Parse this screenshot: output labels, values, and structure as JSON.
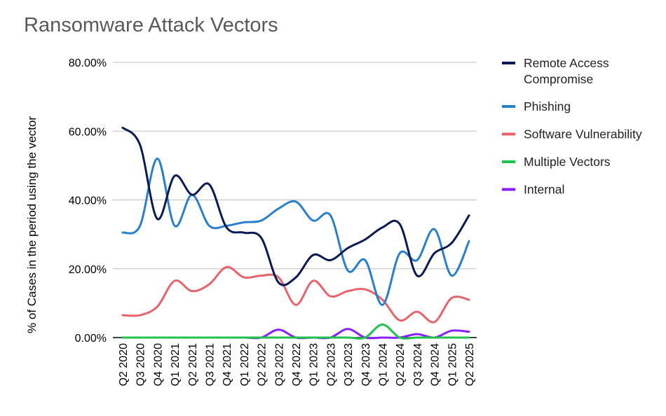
{
  "chart_data": {
    "type": "line",
    "title": "Ransomware Attack Vectors",
    "xlabel": "",
    "ylabel": "% of Cases in the period using the vector",
    "ylim": [
      0,
      80
    ],
    "yticks": [
      "0.00%",
      "20.00%",
      "40.00%",
      "60.00%",
      "80.00%"
    ],
    "grid": true,
    "legend_position": "right",
    "smooth": true,
    "categories": [
      "Q2 2020",
      "Q3 2020",
      "Q4 2020",
      "Q1 2021",
      "Q2 2021",
      "Q3 2021",
      "Q4 2021",
      "Q1 2022",
      "Q2 2022",
      "Q3 2022",
      "Q4 2022",
      "Q1 2023",
      "Q2 2023",
      "Q3 2023",
      "Q4 2023",
      "Q1 2024",
      "Q2 2024",
      "Q3 2024",
      "Q4 2024",
      "Q1 2025",
      "Q2 2025"
    ],
    "series": [
      {
        "name": "Remote Access Compromise",
        "legend_lines": [
          "Remote Access",
          "Compromise"
        ],
        "color": "#0b1a55",
        "values": [
          61,
          56,
          34.5,
          47,
          41.5,
          44.5,
          32,
          30.5,
          29,
          16,
          17.5,
          24,
          22.5,
          26,
          28.5,
          32,
          33,
          18,
          24.5,
          27.5,
          35.5
        ]
      },
      {
        "name": "Phishing",
        "legend_lines": [
          "Phishing"
        ],
        "color": "#2a7fcc",
        "values": [
          30.5,
          32.5,
          52,
          32.5,
          41.5,
          32.5,
          32.5,
          33.5,
          34,
          37.5,
          39.5,
          34,
          35.5,
          19.5,
          22.5,
          9.5,
          24.5,
          22.5,
          31.5,
          18,
          28
        ]
      },
      {
        "name": "Software Vulnerability",
        "legend_lines": [
          "Software Vulnerability"
        ],
        "color": "#e8636c",
        "values": [
          6.5,
          6.5,
          9,
          16.5,
          13.5,
          15.5,
          20.5,
          17.5,
          18,
          17.5,
          9.5,
          16.5,
          12,
          13.5,
          14,
          11,
          5,
          7.5,
          4.5,
          11.5,
          11
        ]
      },
      {
        "name": "Multiple Vectors",
        "legend_lines": [
          "Multiple Vectors"
        ],
        "color": "#1fc24d",
        "values": [
          0,
          0,
          0,
          0,
          0,
          0,
          0,
          0,
          0,
          0,
          0,
          0,
          0,
          0,
          0,
          3.8,
          0,
          0,
          0,
          0,
          0
        ]
      },
      {
        "name": "Internal",
        "legend_lines": [
          "Internal"
        ],
        "color": "#8a1fff",
        "values": [
          0,
          0,
          0,
          0,
          0,
          0,
          0,
          0,
          0,
          2.3,
          0,
          0,
          0,
          2.5,
          0,
          0,
          0,
          1,
          0,
          2,
          1.7
        ]
      }
    ]
  }
}
